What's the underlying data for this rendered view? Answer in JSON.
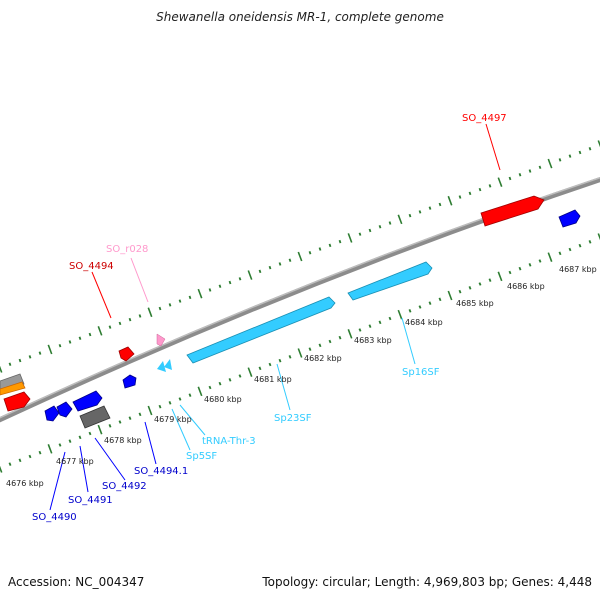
{
  "title": "Shewanella oneidensis MR-1, complete genome",
  "footer": {
    "accession": "Accession: NC_004347",
    "summary": "Topology: circular; Length: 4,969,803 bp; Genes: 4,448"
  },
  "colors": {
    "backbone": "#8c8c8c",
    "tick": "#2e7d32",
    "rRNA": "#33ccff",
    "tRNA": "#33ccff",
    "gene_forward": "#ff0000",
    "gene_reverse": "#0000ff",
    "gray_feature": "#666666",
    "orange_feature": "#ff9900",
    "pink_feature": "#ff99cc"
  },
  "scale_labels": [
    "4676 kbp",
    "4677 kbp",
    "4678 kbp",
    "4679 kbp",
    "4680 kbp",
    "4681 kbp",
    "4682 kbp",
    "4683 kbp",
    "4684 kbp",
    "4685 kbp",
    "4686 kbp",
    "4687 kbp"
  ],
  "feature_labels": {
    "so_4497": "SO_4497",
    "so_r028": "SO_r028",
    "so_4494": "SO_4494",
    "sp16sf": "Sp16SF",
    "sp23sf": "Sp23SF",
    "trna_thr_3": "tRNA-Thr-3",
    "sp5sf": "Sp5SF",
    "so_4494_1": "SO_4494.1",
    "so_4492": "SO_4492",
    "so_4491": "SO_4491",
    "so_4490": "SO_4490"
  }
}
